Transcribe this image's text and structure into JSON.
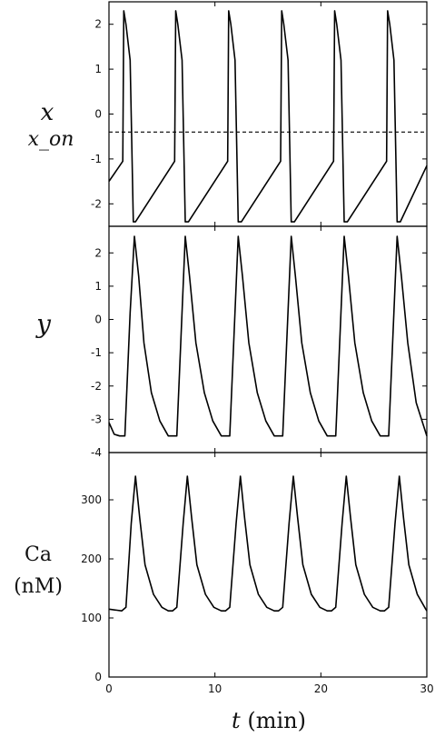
{
  "chart_data": [
    {
      "type": "line",
      "ylabel": "x",
      "ylabel_secondary": "x_on",
      "ylim": [
        -2.5,
        2.5
      ],
      "yticks": [
        2,
        1,
        0,
        -1,
        -2
      ],
      "ytick_labels": [
        "2",
        "1",
        "0",
        "-1",
        "-2"
      ],
      "series": [
        {
          "x": [
            0,
            1.3,
            1.4,
            1.6,
            2.0,
            2.3,
            2.5,
            6.2,
            6.3,
            6.5,
            6.9,
            7.2,
            7.5,
            11.2,
            11.3,
            11.5,
            11.9,
            12.2,
            12.5,
            16.2,
            16.3,
            16.5,
            16.9,
            17.2,
            17.5,
            21.2,
            21.3,
            21.5,
            21.9,
            22.2,
            22.5,
            26.2,
            26.3,
            26.5,
            26.9,
            27.2,
            27.5,
            30
          ],
          "y": [
            -1.5,
            -1.05,
            2.3,
            2.0,
            1.2,
            -2.4,
            -2.4,
            -1.05,
            2.3,
            2.0,
            1.2,
            -2.4,
            -2.4,
            -1.05,
            2.3,
            2.0,
            1.2,
            -2.4,
            -2.4,
            -1.05,
            2.3,
            2.0,
            1.2,
            -2.4,
            -2.4,
            -1.05,
            2.3,
            2.0,
            1.2,
            -2.4,
            -2.4,
            -1.05,
            2.3,
            2.0,
            1.2,
            -2.4,
            -2.4,
            -1.15
          ]
        },
        {
          "dashed": true,
          "x": [
            0,
            30
          ],
          "y": [
            -0.4,
            -0.4
          ]
        }
      ]
    },
    {
      "type": "line",
      "ylabel": "y",
      "ylim": [
        -4,
        2.8
      ],
      "yticks": [
        2,
        1,
        0,
        -1,
        -2,
        -3,
        -4
      ],
      "ytick_labels": [
        "2",
        "1",
        "0",
        "-1",
        "-2",
        "-3",
        "-4"
      ],
      "series": [
        {
          "x": [
            0,
            0.5,
            1.0,
            1.5,
            2.0,
            2.4,
            2.8,
            3.3,
            4.0,
            4.8,
            5.6,
            6.0,
            6.4,
            7.2,
            7.6,
            8.2,
            9.0,
            9.8,
            10.6,
            11.0,
            11.4,
            12.2,
            12.6,
            13.2,
            14.0,
            14.8,
            15.6,
            16.0,
            16.4,
            17.2,
            17.6,
            18.2,
            19.0,
            19.8,
            20.6,
            21.0,
            21.4,
            22.2,
            22.6,
            23.2,
            24.0,
            24.8,
            25.6,
            26.0,
            26.4,
            27.2,
            27.6,
            28.2,
            29.0,
            30.0
          ],
          "y": [
            -3.1,
            -3.45,
            -3.5,
            -3.5,
            0.2,
            2.5,
            1.3,
            -0.7,
            -2.2,
            -3.05,
            -3.5,
            -3.5,
            -3.5,
            2.5,
            1.3,
            -0.7,
            -2.2,
            -3.05,
            -3.5,
            -3.5,
            -3.5,
            2.5,
            1.3,
            -0.7,
            -2.2,
            -3.05,
            -3.5,
            -3.5,
            -3.5,
            2.5,
            1.3,
            -0.7,
            -2.2,
            -3.05,
            -3.5,
            -3.5,
            -3.5,
            2.5,
            1.3,
            -0.7,
            -2.2,
            -3.05,
            -3.5,
            -3.5,
            -3.5,
            2.5,
            1.3,
            -0.7,
            -2.5,
            -3.5
          ]
        }
      ]
    },
    {
      "type": "line",
      "ylabel": "Ca",
      "ylabel_secondary": "(nM)",
      "xlabel": "t (min)",
      "xlim": [
        0,
        30
      ],
      "ylim": [
        0,
        380
      ],
      "yticks": [
        0,
        100,
        200,
        300
      ],
      "ytick_labels": [
        "0",
        "100",
        "200",
        "300"
      ],
      "xticks": [
        0,
        10,
        20,
        30
      ],
      "xtick_labels": [
        "0",
        "10",
        "20",
        "30"
      ],
      "series": [
        {
          "x": [
            0,
            1.2,
            1.6,
            2.1,
            2.5,
            2.9,
            3.4,
            4.2,
            5.0,
            5.6,
            6.0,
            6.4,
            7.0,
            7.4,
            7.8,
            8.3,
            9.1,
            9.9,
            10.6,
            11.0,
            11.4,
            12.0,
            12.4,
            12.8,
            13.3,
            14.1,
            14.9,
            15.6,
            16.0,
            16.4,
            17.0,
            17.4,
            17.8,
            18.3,
            19.1,
            19.9,
            20.6,
            21.0,
            21.4,
            22.0,
            22.4,
            22.8,
            23.3,
            24.1,
            24.9,
            25.6,
            26.0,
            26.4,
            27.0,
            27.4,
            27.8,
            28.3,
            29.1,
            29.9,
            30.0
          ],
          "y": [
            115,
            112,
            118,
            260,
            340,
            270,
            190,
            140,
            118,
            112,
            112,
            118,
            260,
            340,
            270,
            190,
            140,
            118,
            112,
            112,
            118,
            260,
            340,
            270,
            190,
            140,
            118,
            112,
            112,
            118,
            260,
            340,
            270,
            190,
            140,
            118,
            112,
            112,
            118,
            260,
            340,
            270,
            190,
            140,
            118,
            112,
            112,
            118,
            260,
            340,
            270,
            190,
            140,
            115,
            112
          ]
        }
      ]
    }
  ]
}
